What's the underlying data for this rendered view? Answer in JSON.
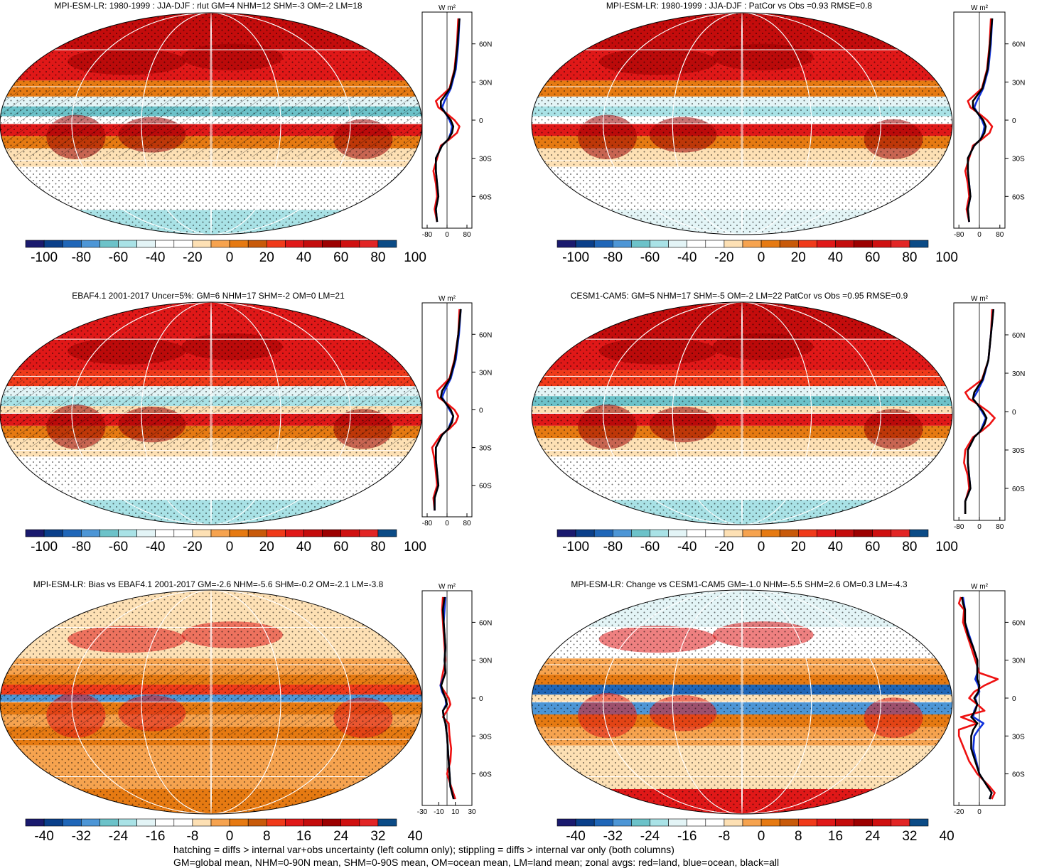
{
  "caption": {
    "line1": "hatching = diffs > internal var+obs uncertainty (left column only); stippling = diffs > internal var only (both columns)",
    "line2": "GM=global mean, NHM=0-90N mean, SHM=0-90S mean, OM=ocean mean, LM=land mean; zonal avgs: red=land, blue=ocean, black=all"
  },
  "colors": {
    "land": "#ee1111",
    "ocean": "#1133dd",
    "all": "#000000",
    "palette": [
      "#1a1a6e",
      "#0a3f8a",
      "#1f66b8",
      "#4d96d6",
      "#6cc2c9",
      "#a9e2e6",
      "#e3f4f6",
      "#ffffff",
      "#ffffff",
      "#fde0b4",
      "#f6a34f",
      "#e67a12",
      "#c85a0a",
      "#f03a1a",
      "#e01818",
      "#c40c0c",
      "#9c0000",
      "#cf1010",
      "#e22525",
      "#0b4b86"
    ]
  },
  "chart_data": [
    {
      "type": "heatmap",
      "title": "MPI-ESM-LR: 1980-1999 : JJA-DJF : rlut GM=4 NHM=12 SHM=-3 OM=-2 LM=18",
      "colorbar_labels": [
        "-100",
        "-80",
        "-60",
        "-40",
        "-20",
        "0",
        "20",
        "40",
        "60",
        "80",
        "100"
      ],
      "zonal": {
        "units": "W m²",
        "xlim": [
          -100,
          100
        ],
        "xticks": [
          "-80",
          "0",
          "80"
        ],
        "yticks": [
          "60N",
          "30N",
          "0",
          "30S",
          "60S"
        ],
        "lat": [
          80,
          60,
          40,
          25,
          15,
          10,
          5,
          0,
          -5,
          -10,
          -15,
          -20,
          -30,
          -40,
          -50,
          -60,
          -70,
          -80
        ],
        "land": [
          45,
          40,
          30,
          10,
          -45,
          -35,
          0,
          30,
          50,
          40,
          10,
          -25,
          -40,
          -55,
          -45,
          -40,
          -50,
          -40
        ],
        "ocean": [
          50,
          45,
          35,
          15,
          -10,
          -20,
          -5,
          10,
          20,
          15,
          5,
          -20,
          -45,
          -45,
          -40,
          -35,
          -45,
          -40
        ],
        "all": [
          50,
          42,
          32,
          12,
          -25,
          -25,
          -5,
          15,
          25,
          20,
          5,
          -20,
          -45,
          -45,
          -40,
          -35,
          -45,
          -40
        ]
      }
    },
    {
      "type": "heatmap",
      "title": "MPI-ESM-LR: 1980-1999 : JJA-DJF : PatCor vs Obs =0.93 RMSE=0.8",
      "colorbar_labels": [
        "-100",
        "-80",
        "-60",
        "-40",
        "-20",
        "0",
        "20",
        "40",
        "60",
        "80",
        "100"
      ],
      "zonal": {
        "units": "W m²",
        "xlim": [
          -100,
          100
        ],
        "xticks": [
          "-80",
          "0",
          "80"
        ],
        "yticks": [
          "60N",
          "30N",
          "0",
          "30S",
          "60S"
        ],
        "lat": [
          80,
          60,
          40,
          25,
          15,
          10,
          5,
          0,
          -5,
          -10,
          -15,
          -20,
          -30,
          -40,
          -50,
          -60,
          -70,
          -80
        ],
        "land": [
          45,
          40,
          30,
          10,
          -45,
          -35,
          0,
          30,
          50,
          40,
          10,
          -25,
          -40,
          -55,
          -45,
          -40,
          -50,
          -40
        ],
        "ocean": [
          50,
          45,
          35,
          15,
          -10,
          -20,
          -5,
          10,
          20,
          15,
          5,
          -20,
          -45,
          -45,
          -40,
          -35,
          -45,
          -40
        ],
        "all": [
          50,
          42,
          32,
          12,
          -25,
          -25,
          -5,
          15,
          25,
          20,
          5,
          -20,
          -45,
          -45,
          -40,
          -35,
          -45,
          -40
        ]
      }
    },
    {
      "type": "heatmap",
      "title": "EBAF4.1 2001-2017 Uncer=5%: GM=6 NHM=17 SHM=-2 OM=0 LM=21",
      "colorbar_labels": [
        "-100",
        "-80",
        "-60",
        "-40",
        "-20",
        "0",
        "20",
        "40",
        "60",
        "80",
        "100"
      ],
      "zonal": {
        "units": "W m²",
        "xlim": [
          -100,
          100
        ],
        "xticks": [
          "-80",
          "0",
          "80"
        ],
        "yticks": [
          "60N",
          "30N",
          "0",
          "30S",
          "60S"
        ],
        "lat": [
          80,
          60,
          40,
          25,
          15,
          10,
          5,
          0,
          -5,
          -10,
          -15,
          -20,
          -30,
          -40,
          -50,
          -60,
          -70,
          -80
        ],
        "land": [
          50,
          45,
          30,
          10,
          -40,
          -35,
          0,
          30,
          45,
          35,
          10,
          -25,
          -60,
          -50,
          -45,
          -40,
          -55,
          -50
        ],
        "ocean": [
          55,
          48,
          35,
          15,
          -10,
          -20,
          -5,
          10,
          25,
          15,
          5,
          -20,
          -45,
          -45,
          -40,
          -35,
          -50,
          -50
        ],
        "all": [
          55,
          45,
          32,
          12,
          -20,
          -25,
          -5,
          15,
          25,
          20,
          5,
          -20,
          -45,
          -45,
          -40,
          -35,
          -50,
          -50
        ]
      }
    },
    {
      "type": "heatmap",
      "title": "CESM1-CAM5: GM=5 NHM=17 SHM=-5 OM=-2 LM=22 PatCor vs Obs =0.95 RMSE=0.9",
      "colorbar_labels": [
        "-100",
        "-80",
        "-60",
        "-40",
        "-20",
        "0",
        "20",
        "40",
        "60",
        "80",
        "100"
      ],
      "zonal": {
        "units": "W m²",
        "xlim": [
          -100,
          100
        ],
        "xticks": [
          "-80",
          "0",
          "80"
        ],
        "yticks": [
          "60N",
          "30N",
          "0",
          "30S",
          "60S"
        ],
        "lat": [
          80,
          60,
          40,
          25,
          15,
          10,
          5,
          0,
          -5,
          -10,
          -15,
          -20,
          -30,
          -40,
          -50,
          -60,
          -70,
          -80
        ],
        "land": [
          50,
          45,
          35,
          10,
          -55,
          -40,
          0,
          35,
          60,
          40,
          10,
          -25,
          -55,
          -60,
          -45,
          -40,
          -55,
          -55
        ],
        "ocean": [
          55,
          45,
          35,
          15,
          -10,
          -25,
          -5,
          10,
          25,
          15,
          5,
          -20,
          -45,
          -45,
          -40,
          -35,
          -55,
          -55
        ],
        "all": [
          55,
          45,
          35,
          12,
          -20,
          -25,
          -5,
          15,
          28,
          20,
          5,
          -20,
          -45,
          -45,
          -40,
          -35,
          -55,
          -55
        ]
      }
    },
    {
      "type": "heatmap",
      "title": "MPI-ESM-LR: Bias vs EBAF4.1 2001-2017 GM=-2.6 NHM=-5.6 SHM=-0.2 OM=-2.1 LM=-3.8",
      "colorbar_labels": [
        "-40",
        "-32",
        "-24",
        "-16",
        "-8",
        "0",
        "8",
        "16",
        "24",
        "32",
        "40"
      ],
      "zonal": {
        "units": "W m²",
        "xlim": [
          -30,
          30
        ],
        "xticks": [
          "-30",
          "-10",
          "10",
          "30"
        ],
        "yticks": [
          "60N",
          "30N",
          "0",
          "30S",
          "60S"
        ],
        "lat": [
          80,
          70,
          60,
          50,
          40,
          30,
          20,
          10,
          5,
          0,
          -5,
          -10,
          -15,
          -20,
          -30,
          -40,
          -50,
          -60,
          -70,
          -80
        ],
        "land": [
          -5,
          -6,
          -5,
          -4,
          -3,
          -2,
          -5,
          -8,
          -3,
          2,
          4,
          0,
          -5,
          2,
          3,
          5,
          4,
          0,
          5,
          10
        ],
        "ocean": [
          -2,
          -3,
          -4,
          -3,
          -2,
          -3,
          -2,
          -8,
          -6,
          -2,
          -1,
          -5,
          -4,
          -2,
          0,
          1,
          2,
          3,
          4,
          8
        ],
        "all": [
          -3,
          -5,
          -4,
          -3,
          -2,
          -3,
          -2,
          -7,
          -5,
          -2,
          0,
          -5,
          -4,
          -2,
          0,
          1,
          2,
          3,
          4,
          8
        ]
      }
    },
    {
      "type": "heatmap",
      "title": "MPI-ESM-LR: Change vs CESM1-CAM5 GM=-1.0 NHM=-5.5 SHM=2.6 OM=0.3 LM=-4.3",
      "colorbar_labels": [
        "-40",
        "-32",
        "-24",
        "-16",
        "-8",
        "0",
        "8",
        "16",
        "24",
        "32",
        "40"
      ],
      "zonal": {
        "units": "W m²",
        "xlim": [
          -25,
          25
        ],
        "xticks": [
          "-20",
          "0"
        ],
        "yticks": [
          "60N",
          "30N",
          "0",
          "30S",
          "60S"
        ],
        "lat": [
          80,
          75,
          70,
          60,
          50,
          40,
          30,
          20,
          15,
          10,
          5,
          0,
          -5,
          -10,
          -15,
          -20,
          -25,
          -30,
          -40,
          -50,
          -60,
          -70,
          -75,
          -80
        ],
        "land": [
          -18,
          -20,
          -15,
          -16,
          -12,
          -8,
          -4,
          0,
          18,
          5,
          -5,
          -10,
          -2,
          5,
          -18,
          -2,
          -20,
          -20,
          -15,
          -10,
          -2,
          10,
          15,
          12
        ],
        "ocean": [
          -16,
          -15,
          -14,
          -14,
          -10,
          -6,
          -2,
          -2,
          -4,
          -1,
          0,
          -4,
          -2,
          -5,
          -6,
          4,
          -1,
          -5,
          -6,
          -3,
          0,
          8,
          12,
          10
        ],
        "all": [
          -17,
          -16,
          -14,
          -14,
          -11,
          -6,
          -2,
          -2,
          -2,
          0,
          -1,
          -5,
          -2,
          -4,
          -8,
          -2,
          -6,
          -8,
          -8,
          -4,
          0,
          8,
          12,
          10
        ]
      }
    }
  ]
}
